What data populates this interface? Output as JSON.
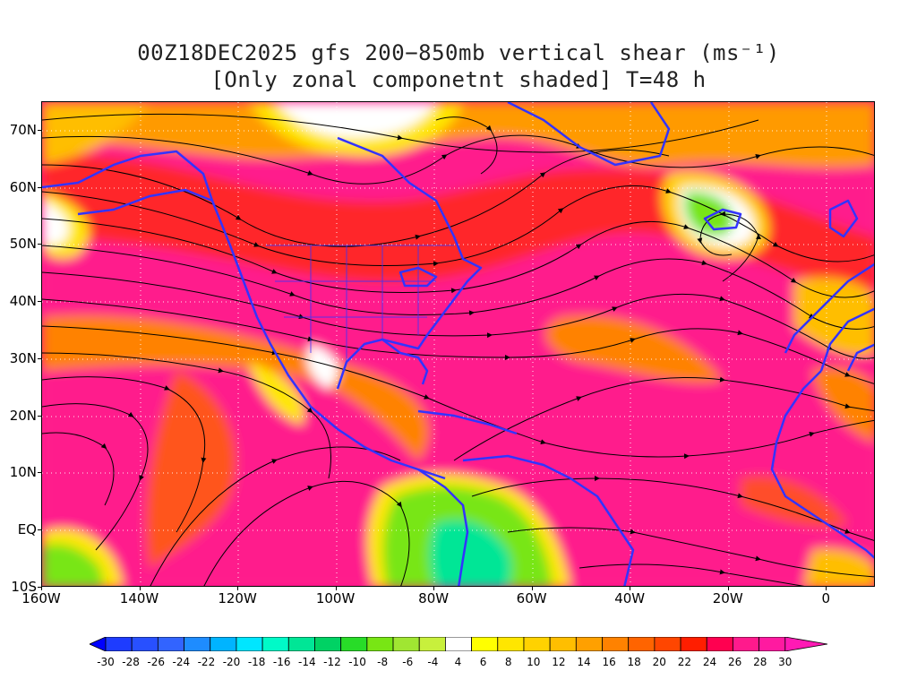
{
  "title": {
    "line1": "00Z18DEC2025 gfs 200−850mb vertical shear (ms⁻¹)",
    "line2": "[Only zonal componetnt shaded] T=48 h"
  },
  "map": {
    "latitude_labels": [
      "70N",
      "60N",
      "50N",
      "40N",
      "30N",
      "20N",
      "10N",
      "EQ",
      "10S"
    ],
    "longitude_labels": [
      "160W",
      "140W",
      "120W",
      "100W",
      "80W",
      "60W",
      "40W",
      "20W",
      "0"
    ],
    "lat_range": [
      -10,
      75
    ],
    "lon_range": [
      -160,
      10
    ],
    "gridlines": "dotted",
    "coastline_color": "#3333ff",
    "streamline_color": "#000000"
  },
  "colorbar": {
    "labels": [
      "-30",
      "-28",
      "-26",
      "-24",
      "-22",
      "-20",
      "-18",
      "-16",
      "-14",
      "-12",
      "-10",
      "-8",
      "-6",
      "-4",
      "4",
      "6",
      "8",
      "10",
      "12",
      "14",
      "16",
      "18",
      "20",
      "22",
      "24",
      "26",
      "28",
      "30"
    ],
    "colors": [
      "#0000ff",
      "#1e3cff",
      "#2850ff",
      "#3264ff",
      "#1e8cff",
      "#00b4ff",
      "#00e6ff",
      "#00fac8",
      "#00e696",
      "#00d264",
      "#28dc28",
      "#78e614",
      "#a0e632",
      "#c8f03c",
      "#ffffff",
      "#ffff00",
      "#ffe600",
      "#ffd200",
      "#ffbe00",
      "#ffa000",
      "#ff8200",
      "#ff6400",
      "#ff4600",
      "#ff1e00",
      "#ff0050",
      "#ff1a8c",
      "#ff1aa0",
      "#ff1ab4"
    ]
  }
}
